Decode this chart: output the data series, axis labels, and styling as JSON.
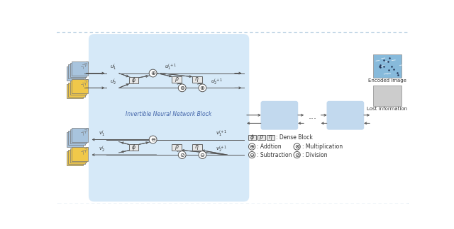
{
  "fig_width": 6.4,
  "fig_height": 3.24,
  "dpi": 100,
  "bg_color": "#ffffff",
  "inner_box_color": "#d6e9f8",
  "block_color": "#c2d9ee",
  "blue_stack_color": "#a8c4de",
  "yellow_stack_color": "#f0c84a",
  "dense_block_color": "#e8e8e8",
  "inn_label": "Invertible Neural Network Block",
  "legend_text": ": Dense Block",
  "add_text": ": Addtion",
  "mult_text": ": Multiplication",
  "sub_text": ": Subtraction",
  "div_text": ": Division",
  "encoded_label": "Encoded image",
  "lost_label": "Lost information"
}
